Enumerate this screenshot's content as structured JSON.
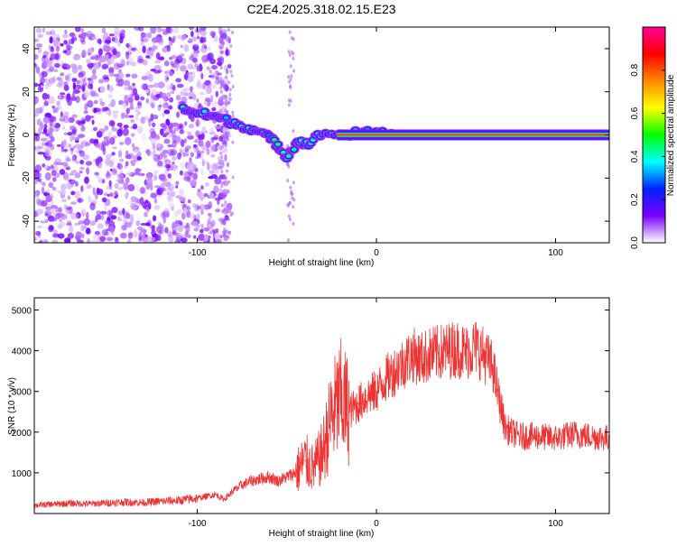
{
  "title": "C2E4.2025.318.02.15.E23",
  "chart_data": [
    {
      "type": "heatmap",
      "xlabel": "Height of straight line (km)",
      "ylabel": "Frequency (Hz)",
      "xlim": [
        -191,
        130
      ],
      "ylim": [
        -50,
        50
      ],
      "x_ticks": [
        -100,
        0,
        100
      ],
      "x_tick_labels": [
        "-100",
        "0",
        "100"
      ],
      "y_ticks": [
        -40,
        -20,
        0,
        20,
        40
      ],
      "y_tick_labels": [
        "-40",
        "-20",
        "0",
        "20",
        "40"
      ],
      "grid": false,
      "colorbar": {
        "label": "Normalized spectral amplitude",
        "range": [
          0,
          1
        ],
        "ticks": [
          0.0,
          0.2,
          0.4,
          0.6,
          0.8
        ],
        "tick_labels": [
          "0.0",
          "0.2",
          "0.4",
          "0.6",
          "0.8"
        ],
        "colormap": "rainbow",
        "colors": [
          "#ffffff",
          "#7a00ff",
          "#0022ff",
          "#00ffff",
          "#00ff00",
          "#ffff00",
          "#ff8800",
          "#ff0000",
          "#ff0099"
        ]
      },
      "features": [
        {
          "description_kind": "noise",
          "x_range": [
            -191,
            -82
          ],
          "y_range": [
            -50,
            50
          ],
          "amplitude": 0.12
        },
        {
          "description_kind": "trace",
          "points": [
            [
              -108,
              12
            ],
            [
              -100,
              10
            ],
            [
              -92,
              9
            ],
            [
              -85,
              7
            ],
            [
              -78,
              5
            ],
            [
              -70,
              3
            ],
            [
              -62,
              0
            ],
            [
              -56,
              -4
            ],
            [
              -50,
              -10
            ],
            [
              -44,
              -3
            ],
            [
              -38,
              -4
            ],
            [
              -30,
              1
            ],
            [
              -20,
              0
            ],
            [
              -10,
              1
            ],
            [
              0,
              1
            ],
            [
              10,
              1
            ]
          ]
        },
        {
          "description_kind": "line",
          "x_range": [
            -22,
            130
          ],
          "y": 0,
          "amplitude": 0.9
        }
      ]
    },
    {
      "type": "line",
      "xlabel": "Height of straight line (km)",
      "ylabel": "SNR (10 * v/v)",
      "xlim": [
        -191,
        130
      ],
      "ylim": [
        0,
        5300
      ],
      "x_ticks": [
        -100,
        0,
        100
      ],
      "x_tick_labels": [
        "-100",
        "0",
        "100"
      ],
      "y_ticks": [
        1000,
        2000,
        3000,
        4000,
        5000
      ],
      "y_tick_labels": [
        "1000",
        "2000",
        "3000",
        "4000",
        "5000"
      ],
      "grid": false,
      "series": [
        {
          "color": "#ee3333",
          "x": [
            -191,
            -180,
            -170,
            -160,
            -150,
            -140,
            -130,
            -120,
            -110,
            -100,
            -95,
            -90,
            -85,
            -80,
            -75,
            -70,
            -65,
            -60,
            -55,
            -50,
            -45,
            -40,
            -35,
            -30,
            -25,
            -20,
            -15,
            -10,
            -5,
            0,
            5,
            10,
            15,
            20,
            25,
            30,
            35,
            40,
            45,
            50,
            55,
            60,
            65,
            68,
            72,
            75,
            80,
            90,
            100,
            110,
            120,
            130
          ],
          "y": [
            200,
            230,
            250,
            240,
            260,
            280,
            270,
            300,
            320,
            380,
            420,
            470,
            350,
            550,
            700,
            800,
            850,
            900,
            800,
            900,
            1000,
            1300,
            1100,
            1500,
            2400,
            2800,
            2500,
            2700,
            2900,
            3000,
            3300,
            3500,
            3700,
            3900,
            3800,
            3900,
            3950,
            4000,
            4050,
            3950,
            4100,
            3900,
            3600,
            2900,
            2100,
            2000,
            1900,
            1900,
            1850,
            1950,
            1900,
            1850
          ]
        }
      ]
    }
  ]
}
